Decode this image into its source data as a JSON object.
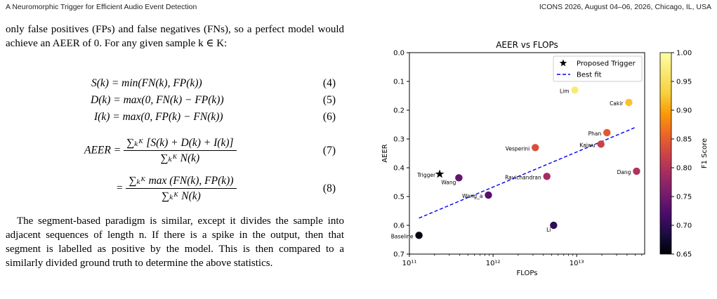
{
  "header": {
    "left": "A Neuromorphic Trigger for Efficient Audio Event Detection",
    "right": "ICONS 2026, August 04–06, 2026, Chicago, IL, USA"
  },
  "intro_text": "only false positives (FPs) and false negatives (FNs), so a perfect model would achieve an AEER of 0. For any given sample k ∈ K:",
  "equations": [
    {
      "lhs": "S(k) = ",
      "rhs": "min(FN(k), FP(k))",
      "num": "(4)"
    },
    {
      "lhs": "D(k) = ",
      "rhs": "max(0, FN(k) − FP(k))",
      "num": "(5)"
    },
    {
      "lhs": "I(k) = ",
      "rhs": "max(0, FP(k) − FN(k))",
      "num": "(6)"
    },
    {
      "lhs": "AEER = ",
      "numerator": "∑ₖᴷ [S(k) + D(k) + I(k)]",
      "denominator": "∑ₖᴷ N(k)",
      "num": "(7)"
    },
    {
      "lhs": "= ",
      "numerator": "∑ₖᴷ max (FN(k), FP(k))",
      "denominator": "∑ₖᴷ N(k)",
      "num": "(8)"
    }
  ],
  "para2": "The segment-based paradigm is similar, except it divides the sample into adjacent sequences of length n. If there is a spike in the output, then that segment is labelled as positive by the model. This is then compared to a similarly divided ground truth to determine the above statistics.",
  "chart_data": {
    "type": "scatter",
    "title": "AEER vs FLOPs",
    "xlabel": "FLOPs",
    "ylabel": "AEER",
    "x_scale": "log",
    "xlim": [
      100000000000.0,
      65000000000000.0
    ],
    "ylim": [
      0.7,
      0.0
    ],
    "y_inverted": true,
    "x_ticks": [
      {
        "label": "10¹¹",
        "value": 100000000000.0
      },
      {
        "label": "10¹²",
        "value": 1000000000000.0
      },
      {
        "label": "10¹³",
        "value": 10000000000000.0
      }
    ],
    "y_ticks": [
      "0.0",
      "0.1",
      "0.2",
      "0.3",
      "0.4",
      "0.5",
      "0.6",
      "0.7"
    ],
    "colorbar": {
      "label": "F1 Score",
      "min": 0.65,
      "max": 1.0,
      "ticks": [
        "0.65",
        "0.70",
        "0.75",
        "0.80",
        "0.85",
        "0.90",
        "0.95",
        "1.00"
      ]
    },
    "legend": {
      "placement": "top-right",
      "entries": [
        {
          "label": "Proposed Trigger",
          "marker": "star"
        },
        {
          "label": "Best fit",
          "marker": "dashed-line"
        }
      ]
    },
    "points": [
      {
        "name": "Baseline",
        "flops": 130000000000.0,
        "aeer": 0.635,
        "f1": 0.66,
        "label_side": "left"
      },
      {
        "name": "Wang",
        "flops": 390000000000.0,
        "aeer": 0.435,
        "f1": 0.74,
        "label_side": "below-left"
      },
      {
        "name": "Wang_a",
        "flops": 880000000000.0,
        "aeer": 0.495,
        "f1": 0.73,
        "label_side": "left"
      },
      {
        "name": "Vesperini",
        "flops": 3200000000000.0,
        "aeer": 0.33,
        "f1": 0.835,
        "label_side": "left"
      },
      {
        "name": "Lim",
        "flops": 9500000000000.0,
        "aeer": 0.13,
        "f1": 0.97,
        "label_side": "left"
      },
      {
        "name": "Li",
        "flops": 5300000000000.0,
        "aeer": 0.6,
        "f1": 0.7,
        "label_side": "below-left"
      },
      {
        "name": "Ravichandran",
        "flops": 4400000000000.0,
        "aeer": 0.43,
        "f1": 0.79,
        "label_side": "left"
      },
      {
        "name": "Phan",
        "flops": 23000000000000.0,
        "aeer": 0.278,
        "f1": 0.845,
        "label_side": "left"
      },
      {
        "name": "Kaiwu",
        "flops": 19500000000000.0,
        "aeer": 0.318,
        "f1": 0.82,
        "label_side": "left"
      },
      {
        "name": "Cakir",
        "flops": 42000000000000.0,
        "aeer": 0.173,
        "f1": 0.92,
        "label_side": "left"
      },
      {
        "name": "Dang",
        "flops": 52000000000000.0,
        "aeer": 0.412,
        "f1": 0.8,
        "label_side": "left"
      }
    ],
    "trigger": {
      "name": "Trigger",
      "flops": 230000000000.0,
      "aeer": 0.422
    },
    "best_fit": {
      "x": [
        130000000000.0,
        52000000000000.0
      ],
      "y": [
        0.575,
        0.258
      ]
    }
  }
}
